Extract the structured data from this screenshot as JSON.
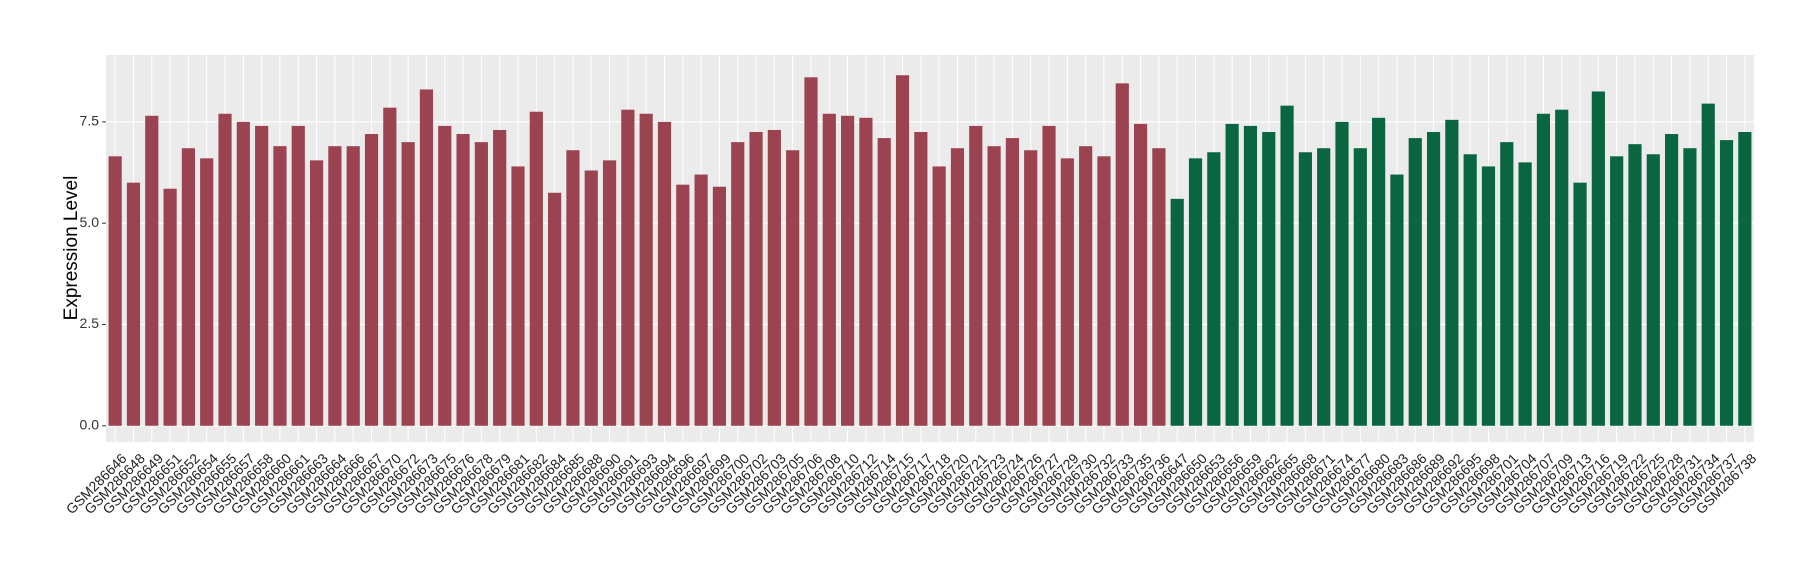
{
  "chart_data": {
    "type": "bar",
    "y_label": "Expression Level",
    "categories": [
      "GSM286646",
      "GSM286648",
      "GSM286649",
      "GSM286651",
      "GSM286652",
      "GSM286654",
      "GSM286655",
      "GSM286657",
      "GSM286658",
      "GSM286660",
      "GSM286661",
      "GSM286663",
      "GSM286664",
      "GSM286666",
      "GSM286667",
      "GSM286670",
      "GSM286672",
      "GSM286673",
      "GSM286675",
      "GSM286676",
      "GSM286678",
      "GSM286679",
      "GSM286681",
      "GSM286682",
      "GSM286684",
      "GSM286685",
      "GSM286688",
      "GSM286690",
      "GSM286691",
      "GSM286693",
      "GSM286694",
      "GSM286696",
      "GSM286697",
      "GSM286699",
      "GSM286700",
      "GSM286702",
      "GSM286703",
      "GSM286705",
      "GSM286706",
      "GSM286708",
      "GSM286710",
      "GSM286712",
      "GSM286714",
      "GSM286715",
      "GSM286717",
      "GSM286718",
      "GSM286720",
      "GSM286721",
      "GSM286723",
      "GSM286724",
      "GSM286726",
      "GSM286727",
      "GSM286729",
      "GSM286730",
      "GSM286732",
      "GSM286733",
      "GSM286735",
      "GSM286736",
      "GSM286647",
      "GSM286650",
      "GSM286653",
      "GSM286656",
      "GSM286659",
      "GSM286662",
      "GSM286665",
      "GSM286668",
      "GSM286671",
      "GSM286674",
      "GSM286677",
      "GSM286680",
      "GSM286683",
      "GSM286686",
      "GSM286689",
      "GSM286692",
      "GSM286695",
      "GSM286698",
      "GSM286701",
      "GSM286704",
      "GSM286707",
      "GSM286709",
      "GSM286713",
      "GSM286716",
      "GSM286719",
      "GSM286722",
      "GSM286725",
      "GSM286728",
      "GSM286731",
      "GSM286734",
      "GSM286737",
      "GSM286738"
    ],
    "values": [
      6.65,
      6.0,
      7.65,
      5.85,
      6.85,
      6.6,
      7.7,
      7.5,
      7.4,
      6.9,
      7.4,
      6.55,
      6.9,
      6.9,
      7.2,
      7.85,
      7.0,
      8.3,
      7.4,
      7.2,
      7.0,
      7.3,
      6.4,
      7.75,
      5.75,
      6.8,
      6.3,
      6.55,
      7.8,
      7.7,
      7.5,
      5.95,
      6.2,
      5.9,
      7.0,
      7.25,
      7.3,
      6.8,
      8.6,
      7.7,
      7.65,
      7.6,
      7.1,
      8.65,
      7.25,
      6.4,
      6.85,
      7.4,
      6.9,
      7.1,
      6.8,
      7.4,
      6.6,
      6.9,
      6.65,
      8.45,
      7.45,
      6.85,
      5.6,
      6.6,
      6.75,
      7.45,
      7.4,
      7.25,
      7.9,
      6.75,
      6.85,
      7.5,
      6.85,
      7.6,
      6.2,
      7.1,
      7.25,
      7.55,
      6.7,
      6.4,
      7.0,
      6.5,
      7.7,
      7.8,
      6.0,
      8.25,
      6.65,
      6.95,
      6.7,
      7.2,
      6.85,
      7.95,
      7.05,
      7.25
    ],
    "bar_colors": [
      "#9b4350",
      "#9b4350",
      "#9b4350",
      "#9b4350",
      "#9b4350",
      "#9b4350",
      "#9b4350",
      "#9b4350",
      "#9b4350",
      "#9b4350",
      "#9b4350",
      "#9b4350",
      "#9b4350",
      "#9b4350",
      "#9b4350",
      "#9b4350",
      "#9b4350",
      "#9b4350",
      "#9b4350",
      "#9b4350",
      "#9b4350",
      "#9b4350",
      "#9b4350",
      "#9b4350",
      "#9b4350",
      "#9b4350",
      "#9b4350",
      "#9b4350",
      "#9b4350",
      "#9b4350",
      "#9b4350",
      "#9b4350",
      "#9b4350",
      "#9b4350",
      "#9b4350",
      "#9b4350",
      "#9b4350",
      "#9b4350",
      "#9b4350",
      "#9b4350",
      "#9b4350",
      "#9b4350",
      "#9b4350",
      "#9b4350",
      "#9b4350",
      "#9b4350",
      "#9b4350",
      "#9b4350",
      "#9b4350",
      "#9b4350",
      "#9b4350",
      "#9b4350",
      "#9b4350",
      "#9b4350",
      "#9b4350",
      "#9b4350",
      "#9b4350",
      "#9b4350",
      "#0a6640",
      "#0a6640",
      "#0a6640",
      "#0a6640",
      "#0a6640",
      "#0a6640",
      "#0a6640",
      "#0a6640",
      "#0a6640",
      "#0a6640",
      "#0a6640",
      "#0a6640",
      "#0a6640",
      "#0a6640",
      "#0a6640",
      "#0a6640",
      "#0a6640",
      "#0a6640",
      "#0a6640",
      "#0a6640",
      "#0a6640",
      "#0a6640",
      "#0a6640",
      "#0a6640",
      "#0a6640",
      "#0a6640",
      "#0a6640",
      "#0a6640",
      "#0a6640",
      "#0a6640",
      "#0a6640",
      "#0a6640"
    ],
    "ylim": [
      -0.4,
      9.15
    ],
    "yticks": [
      {
        "value": 0,
        "label": "0.0"
      },
      {
        "value": 2.5,
        "label": "2.5"
      },
      {
        "value": 5,
        "label": "5.0"
      },
      {
        "value": 7.5,
        "label": "7.5"
      }
    ],
    "grid": true
  }
}
